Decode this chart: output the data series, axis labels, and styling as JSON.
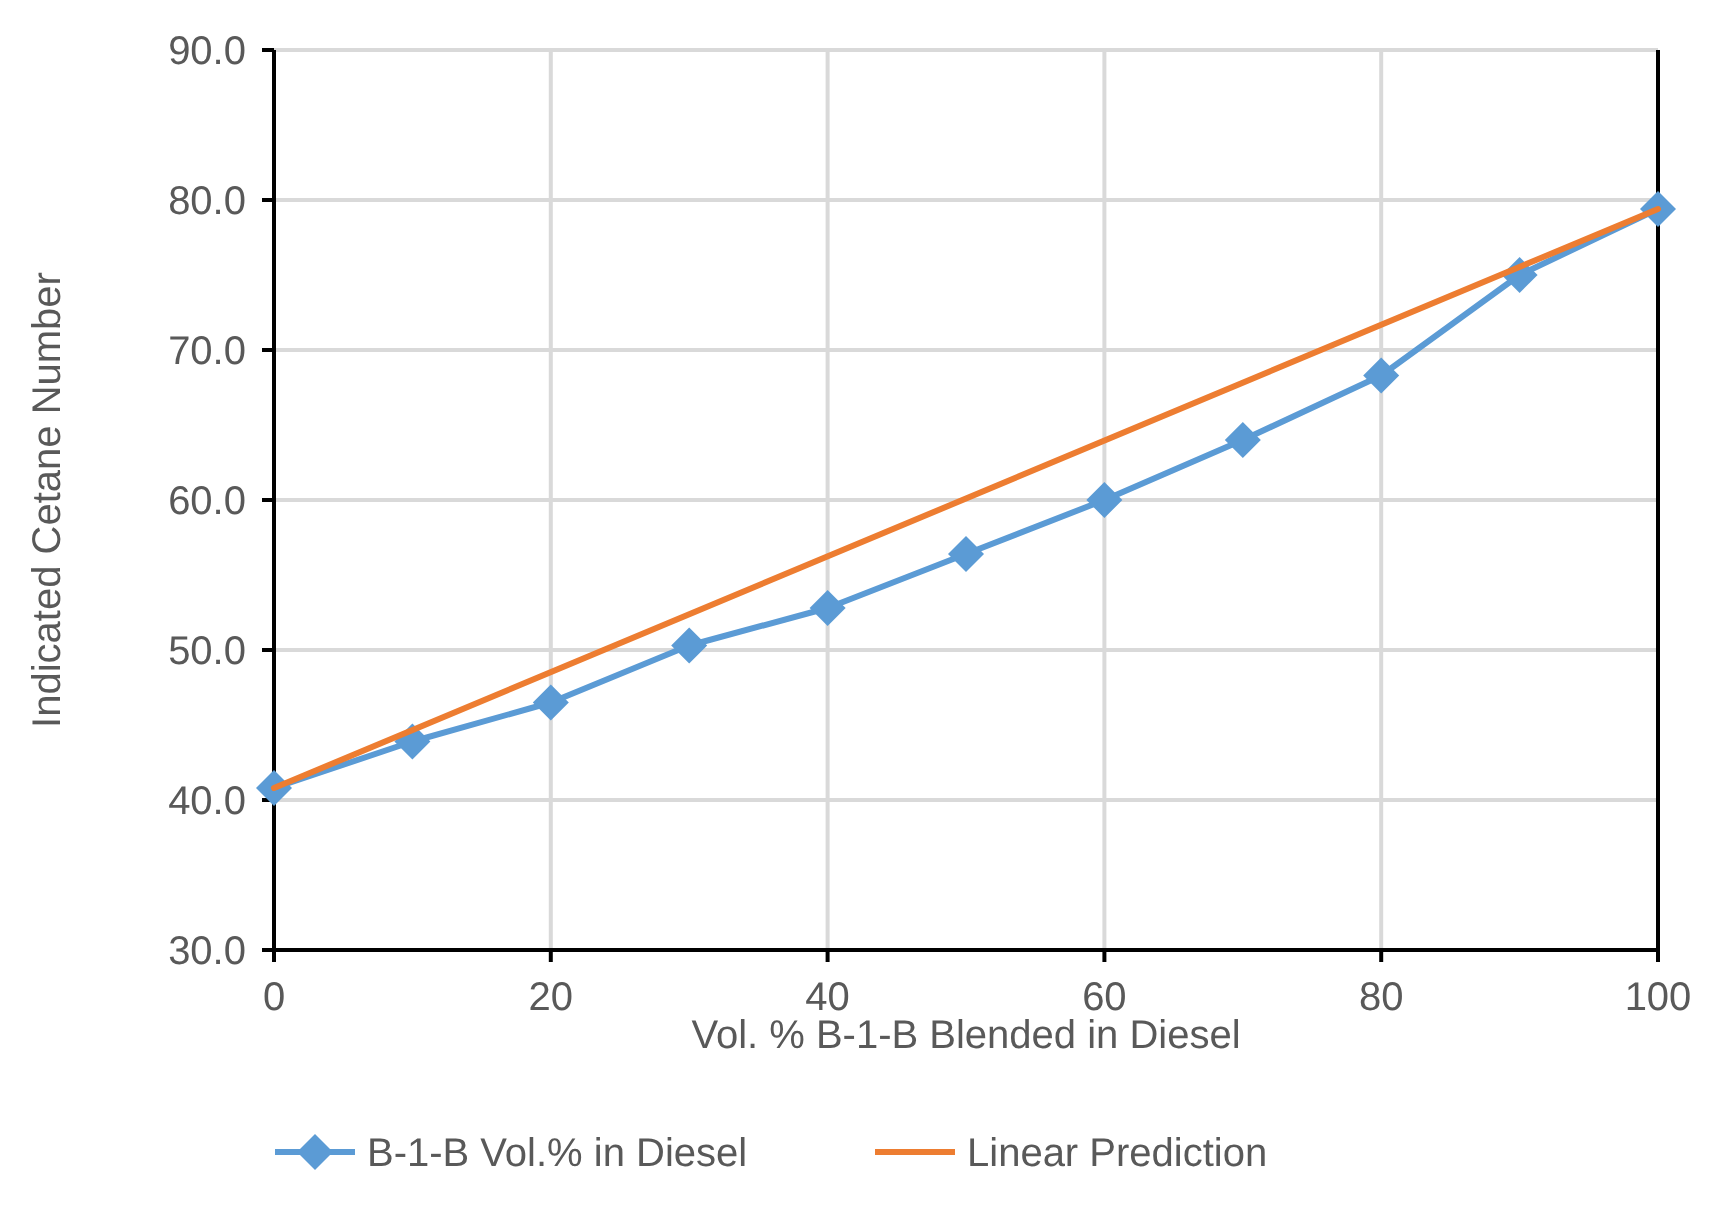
{
  "chart_data": {
    "type": "line",
    "xlabel": "Vol. % B-1-B Blended in Diesel",
    "ylabel": "Indicated Cetane Number",
    "x": [
      0,
      10,
      20,
      30,
      40,
      50,
      60,
      70,
      80,
      90,
      100
    ],
    "series": [
      {
        "name": "B-1-B Vol.% in Diesel",
        "color": "#5b9bd5",
        "marker": "diamond",
        "values": [
          40.8,
          43.9,
          46.5,
          50.3,
          52.8,
          56.4,
          60.0,
          64.0,
          68.3,
          75.0,
          79.4
        ]
      },
      {
        "name": "Linear Prediction",
        "color": "#ed7d31",
        "marker": "none",
        "x": [
          0,
          100
        ],
        "values": [
          40.8,
          79.4
        ]
      }
    ],
    "xlim": [
      0,
      100
    ],
    "xticks": [
      0,
      20,
      40,
      60,
      80,
      100
    ],
    "ylim": [
      30,
      90
    ],
    "yticks": [
      {
        "value": 30,
        "label": "30.0"
      },
      {
        "value": 40,
        "label": "40.0"
      },
      {
        "value": 50,
        "label": "50.0"
      },
      {
        "value": 60,
        "label": "60.0"
      },
      {
        "value": 70,
        "label": "70.0"
      },
      {
        "value": 80,
        "label": "80.0"
      },
      {
        "value": 90,
        "label": "90.0"
      }
    ],
    "grid": true,
    "legend": "bottom"
  }
}
